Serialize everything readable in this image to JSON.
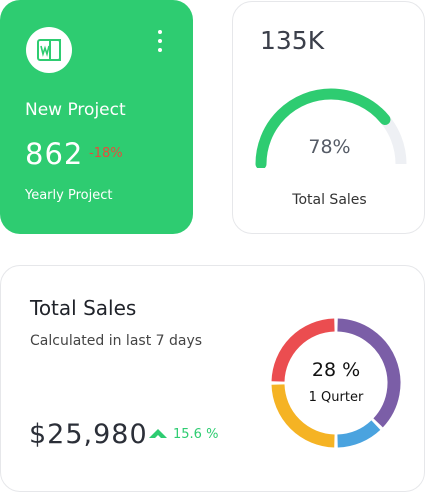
{
  "project_card": {
    "title": "New Project",
    "value": "862",
    "delta": "-18%",
    "subtitle": "Yearly Project",
    "icon": "word-document-icon",
    "background": "#2ecc71",
    "delta_color": "#e74c3c"
  },
  "gauge_card": {
    "value": "135K",
    "percent_label": "78%",
    "percent": 78,
    "label": "Total Sales",
    "accent": "#2ecc71",
    "track": "#eef0f4"
  },
  "sales_card": {
    "title": "Total Sales",
    "subtitle": "Calculated in last 7 days",
    "amount": "$25,980",
    "trend": "15.6 %",
    "trend_icon": "arrow-up-icon",
    "trend_color": "#2ecc71",
    "donut_percent": "28 %",
    "donut_caption": "1 Qurter",
    "donut_segments": [
      {
        "color": "#7b5ea7",
        "share": 0.375
      },
      {
        "color": "#4aa3df",
        "share": 0.125
      },
      {
        "color": "#f5b324",
        "share": 0.25
      },
      {
        "color": "#eb4d50",
        "share": 0.25
      }
    ]
  }
}
